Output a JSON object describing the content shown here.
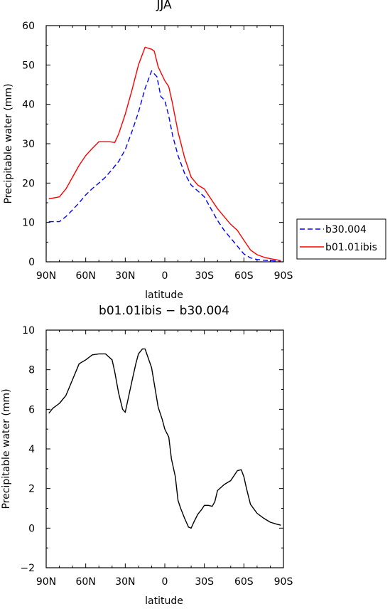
{
  "chart_data": [
    {
      "type": "line",
      "title": "JJA",
      "xlabel": "latitude",
      "ylabel": "Precipitable water (mm)",
      "xlim": [
        90,
        -90
      ],
      "ylim": [
        0,
        60
      ],
      "xticks": [
        90,
        60,
        30,
        0,
        -30,
        -60,
        -90
      ],
      "xtick_labels": [
        "90N",
        "60N",
        "30N",
        "0",
        "30S",
        "60S",
        "90S"
      ],
      "yticks": [
        0,
        10,
        20,
        30,
        40,
        50,
        60
      ],
      "ytick_labels": [
        "0",
        "10",
        "20",
        "30",
        "40",
        "50",
        "60"
      ],
      "legend_position": "right",
      "series": [
        {
          "name": "b30.004",
          "color": "#0000ff",
          "dash": "dashed",
          "x": [
            88,
            80,
            75,
            70,
            65,
            60,
            55,
            50,
            45,
            40,
            35,
            30,
            25,
            20,
            15,
            10,
            6,
            3,
            0,
            -3,
            -6,
            -10,
            -15,
            -20,
            -25,
            -30,
            -35,
            -40,
            -45,
            -50,
            -55,
            -60,
            -65,
            -70,
            -75,
            -80,
            -85,
            -88
          ],
          "values": [
            10.2,
            10.2,
            11.5,
            13.2,
            15.0,
            17.0,
            18.6,
            20.0,
            21.5,
            23.5,
            25.5,
            28.5,
            33,
            38,
            44,
            48.5,
            47,
            42,
            41,
            37,
            32,
            27,
            22.5,
            19.5,
            18.0,
            16.5,
            13.5,
            10.5,
            8.0,
            6.0,
            4.0,
            2.0,
            1.0,
            0.6,
            0.4,
            0.3,
            0.2,
            0.1
          ]
        },
        {
          "name": "b01.01ibis",
          "color": "#ff0000",
          "dash": "solid",
          "x": [
            88,
            80,
            75,
            70,
            65,
            60,
            55,
            50,
            45,
            42,
            38,
            35,
            30,
            25,
            20,
            15,
            10,
            8,
            5,
            0,
            -3,
            -6,
            -10,
            -15,
            -20,
            -25,
            -30,
            -35,
            -40,
            -45,
            -50,
            -55,
            -60,
            -65,
            -70,
            -75,
            -80,
            -85,
            -88
          ],
          "values": [
            16,
            16.5,
            18.5,
            21.5,
            24.5,
            27,
            28.8,
            30.5,
            30.5,
            30.5,
            30.3,
            32.5,
            37.5,
            43.5,
            50,
            54.5,
            54,
            53.5,
            49.5,
            46,
            44.5,
            40,
            33,
            26.5,
            21.5,
            19.5,
            18.5,
            16,
            13.5,
            11.5,
            9.5,
            8.0,
            5.5,
            3.0,
            1.8,
            1.2,
            0.8,
            0.5,
            0.3
          ]
        }
      ]
    },
    {
      "type": "line",
      "title": "b01.01ibis − b30.004",
      "xlabel": "latitude",
      "ylabel": "Precipitable water (mm)",
      "xlim": [
        90,
        -90
      ],
      "ylim": [
        -2,
        10
      ],
      "xticks": [
        90,
        60,
        30,
        0,
        -30,
        -60,
        -90
      ],
      "xtick_labels": [
        "90N",
        "60N",
        "30N",
        "0",
        "30S",
        "60S",
        "90S"
      ],
      "yticks": [
        -2,
        0,
        2,
        4,
        6,
        8,
        10
      ],
      "ytick_labels": [
        "−2",
        "0",
        "2",
        "4",
        "6",
        "8",
        "10"
      ],
      "series": [
        {
          "color": "#000000",
          "dash": "solid",
          "x": [
            88,
            85,
            80,
            75,
            70,
            65,
            60,
            55,
            50,
            45,
            40,
            38,
            35,
            32,
            30,
            25,
            22,
            20,
            17,
            15,
            10,
            7,
            5,
            2,
            0,
            -3,
            -5,
            -8,
            -10,
            -12,
            -15,
            -18,
            -20,
            -22,
            -25,
            -28,
            -30,
            -33,
            -36,
            -38,
            -40,
            -45,
            -50,
            -55,
            -58,
            -60,
            -62,
            -65,
            -70,
            -75,
            -80,
            -85,
            -88
          ],
          "values": [
            5.8,
            6.05,
            6.3,
            6.7,
            7.5,
            8.3,
            8.5,
            8.75,
            8.8,
            8.8,
            8.5,
            7.9,
            6.8,
            6.0,
            5.85,
            7.4,
            8.3,
            8.8,
            9.05,
            9.05,
            8.1,
            6.9,
            6.1,
            5.5,
            5.0,
            4.6,
            3.5,
            2.6,
            1.4,
            1.0,
            0.5,
            0.05,
            0.0,
            0.3,
            0.7,
            0.95,
            1.15,
            1.15,
            1.1,
            1.35,
            1.9,
            2.2,
            2.4,
            2.9,
            2.95,
            2.6,
            2.0,
            1.2,
            0.75,
            0.5,
            0.3,
            0.2,
            0.15
          ]
        }
      ]
    }
  ]
}
